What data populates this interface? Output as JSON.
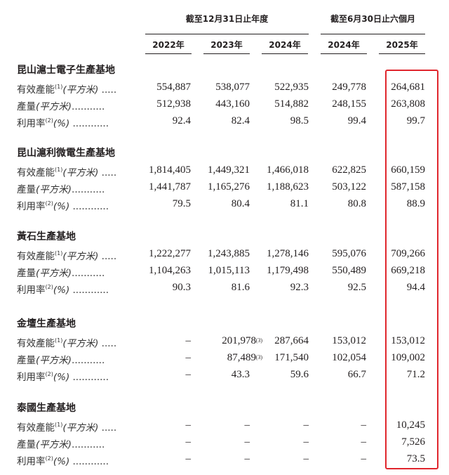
{
  "header": {
    "group1": "截至12月31日止年度",
    "group2": "截至6月30日止六個月",
    "years": [
      "2022年",
      "2023年",
      "2024年",
      "2024年",
      "2025年"
    ]
  },
  "highlight_color": "#e0262d",
  "sections": [
    {
      "title": "昆山滬士電子生產基地",
      "rows": [
        {
          "label": "有效產能",
          "sup": "(1)",
          "unit": "(平方米)",
          "dots": " .....",
          "values": [
            "554,887",
            "538,077",
            "522,935",
            "249,778",
            "264,681"
          ],
          "notes": [
            "",
            "",
            "",
            "",
            ""
          ]
        },
        {
          "label": "產量",
          "sup": "",
          "unit": "(平方米)",
          "dots": "...........",
          "values": [
            "512,938",
            "443,160",
            "514,882",
            "248,155",
            "263,808"
          ],
          "notes": [
            "",
            "",
            "",
            "",
            ""
          ]
        },
        {
          "label": "利用率",
          "sup": "(2)",
          "unit": "(%)",
          "dots": " ............",
          "values": [
            "92.4",
            "82.4",
            "98.5",
            "99.4",
            "99.7"
          ],
          "notes": [
            "",
            "",
            "",
            "",
            ""
          ]
        }
      ]
    },
    {
      "title": "昆山滬利微電生產基地",
      "rows": [
        {
          "label": "有效產能",
          "sup": "(1)",
          "unit": "(平方米)",
          "dots": " .....",
          "values": [
            "1,814,405",
            "1,449,321",
            "1,466,018",
            "622,825",
            "660,159"
          ],
          "notes": [
            "",
            "",
            "",
            "",
            ""
          ]
        },
        {
          "label": "產量",
          "sup": "",
          "unit": "(平方米)",
          "dots": "...........",
          "values": [
            "1,441,787",
            "1,165,276",
            "1,188,623",
            "503,122",
            "587,158"
          ],
          "notes": [
            "",
            "",
            "",
            "",
            ""
          ]
        },
        {
          "label": "利用率",
          "sup": "(2)",
          "unit": "(%)",
          "dots": " ............",
          "values": [
            "79.5",
            "80.4",
            "81.1",
            "80.8",
            "88.9"
          ],
          "notes": [
            "",
            "",
            "",
            "",
            ""
          ]
        }
      ]
    },
    {
      "title": "黃石生產基地",
      "rows": [
        {
          "label": "有效產能",
          "sup": "(1)",
          "unit": "(平方米)",
          "dots": " .....",
          "values": [
            "1,222,277",
            "1,243,885",
            "1,278,146",
            "595,076",
            "709,266"
          ],
          "notes": [
            "",
            "",
            "",
            "",
            ""
          ]
        },
        {
          "label": "產量",
          "sup": "",
          "unit": "(平方米)",
          "dots": "...........",
          "values": [
            "1,104,263",
            "1,015,113",
            "1,179,498",
            "550,489",
            "669,218"
          ],
          "notes": [
            "",
            "",
            "",
            "",
            ""
          ]
        },
        {
          "label": "利用率",
          "sup": "(2)",
          "unit": "(%)",
          "dots": " ............",
          "values": [
            "90.3",
            "81.6",
            "92.3",
            "92.5",
            "94.4"
          ],
          "notes": [
            "",
            "",
            "",
            "",
            ""
          ]
        }
      ]
    },
    {
      "title": "金壇生產基地",
      "rows": [
        {
          "label": "有效產能",
          "sup": "(1)",
          "unit": "(平方米)",
          "dots": " .....",
          "values": [
            "–",
            "201,978",
            "287,664",
            "153,012",
            "153,012"
          ],
          "notes": [
            "",
            "(3)",
            "",
            "",
            ""
          ]
        },
        {
          "label": "產量",
          "sup": "",
          "unit": "(平方米)",
          "dots": "...........",
          "values": [
            "–",
            "87,489",
            "171,540",
            "102,054",
            "109,002"
          ],
          "notes": [
            "",
            "(3)",
            "",
            "",
            ""
          ]
        },
        {
          "label": "利用率",
          "sup": "(2)",
          "unit": "(%)",
          "dots": " ............",
          "values": [
            "–",
            "43.3",
            "59.6",
            "66.7",
            "71.2"
          ],
          "notes": [
            "",
            "",
            "",
            "",
            ""
          ]
        }
      ]
    },
    {
      "title": "泰國生產基地",
      "rows": [
        {
          "label": "有效產能",
          "sup": "(1)",
          "unit": "(平方米)",
          "dots": " .....",
          "values": [
            "–",
            "–",
            "–",
            "–",
            "10,245"
          ],
          "notes": [
            "",
            "",
            "",
            "",
            ""
          ]
        },
        {
          "label": "產量",
          "sup": "",
          "unit": "(平方米)",
          "dots": "...........",
          "values": [
            "–",
            "–",
            "–",
            "–",
            "7,526"
          ],
          "notes": [
            "",
            "",
            "",
            "",
            ""
          ]
        },
        {
          "label": "利用率",
          "sup": "(2)",
          "unit": "(%)",
          "dots": " ............",
          "values": [
            "–",
            "–",
            "–",
            "–",
            "73.5"
          ],
          "notes": [
            "",
            "",
            "",
            "",
            ""
          ]
        }
      ]
    }
  ]
}
